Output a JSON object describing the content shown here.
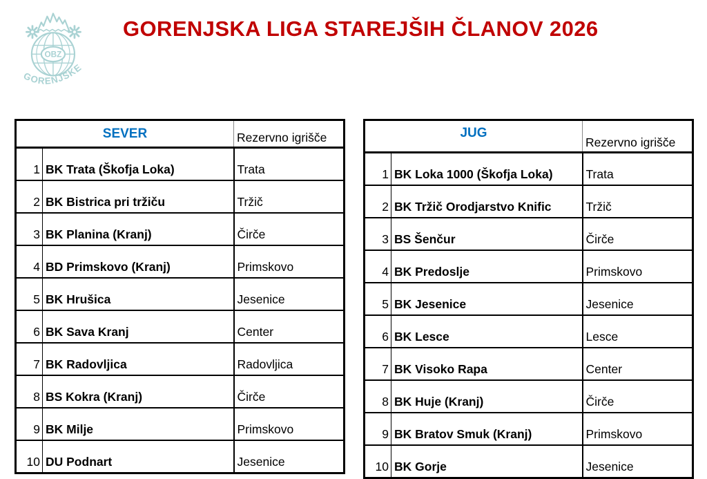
{
  "page": {
    "title": "GORENJSKA LIGA STAREJŠIH ČLANOV 2026",
    "title_color": "#C00000",
    "background_color": "#FFFFFF"
  },
  "logo": {
    "name": "OBZ Gorenjske emblem",
    "center_text": "OBZ",
    "arc_text": "GORENJSKE",
    "color": "#A9D2D3"
  },
  "tables": [
    {
      "header": {
        "title": "SEVER",
        "title_color": "#0070C0",
        "reserve_label": "Rezervno igrišče"
      },
      "rows": [
        {
          "num": "1",
          "club": "BK Trata (Škofja Loka)",
          "reserve": "Trata"
        },
        {
          "num": "2",
          "club": "BK Bistrica pri tržiču",
          "reserve": "Tržič"
        },
        {
          "num": "3",
          "club": "BK Planina (Kranj)",
          "reserve": "Čirče"
        },
        {
          "num": "4",
          "club": "BD Primskovo (Kranj)",
          "reserve": "Primskovo"
        },
        {
          "num": "5",
          "club": "BK Hrušica",
          "reserve": "Jesenice"
        },
        {
          "num": "6",
          "club": "BK Sava Kranj",
          "reserve": "Center"
        },
        {
          "num": "7",
          "club": "BK Radovljica",
          "reserve": "Radovljica"
        },
        {
          "num": "8",
          "club": "BS Kokra (Kranj)",
          "reserve": "Čirče"
        },
        {
          "num": "9",
          "club": "BK Milje",
          "reserve": "Primskovo"
        },
        {
          "num": "10",
          "club": "DU Podnart",
          "reserve": "Jesenice"
        }
      ]
    },
    {
      "header": {
        "title": "JUG",
        "title_color": "#0070C0",
        "reserve_label": "Rezervno igrišče"
      },
      "rows": [
        {
          "num": "1",
          "club": "BK Loka 1000 (Škofja Loka)",
          "reserve": "Trata"
        },
        {
          "num": "2",
          "club": "BK Tržič Orodjarstvo Knific",
          "reserve": "Tržič"
        },
        {
          "num": "3",
          "club": "BS Šenčur",
          "reserve": "Čirče"
        },
        {
          "num": "4",
          "club": "BK Predoslje",
          "reserve": "Primskovo"
        },
        {
          "num": "5",
          "club": "BK Jesenice",
          "reserve": "Jesenice"
        },
        {
          "num": "6",
          "club": "BK Lesce",
          "reserve": "Lesce"
        },
        {
          "num": "7",
          "club": "BK Visoko Rapa",
          "reserve": "Center"
        },
        {
          "num": "8",
          "club": "BK Huje (Kranj)",
          "reserve": "Čirče"
        },
        {
          "num": "9",
          "club": "BK Bratov Smuk (Kranj)",
          "reserve": "Primskovo"
        },
        {
          "num": "10",
          "club": "BK Gorje",
          "reserve": "Jesenice"
        }
      ]
    }
  ]
}
